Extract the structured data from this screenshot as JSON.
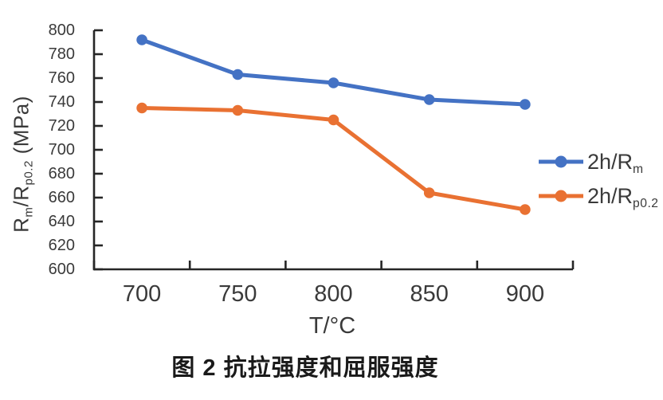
{
  "figure": {
    "caption": "图 2 抗拉强度和屈服强度"
  },
  "chart_data": {
    "type": "line",
    "categories": [
      "700",
      "750",
      "800",
      "850",
      "900"
    ],
    "series": [
      {
        "name": "2h/Rm",
        "label_parts": [
          {
            "t": "2h/R"
          },
          {
            "t": "m",
            "sub": true
          }
        ],
        "color": "#4472C4",
        "values": [
          792,
          763,
          756,
          742,
          738
        ]
      },
      {
        "name": "2h/Rp0.2",
        "label_parts": [
          {
            "t": "2h/R"
          },
          {
            "t": "p0.2",
            "sub": true
          }
        ],
        "color": "#E97132",
        "values": [
          735,
          733,
          725,
          664,
          650
        ]
      }
    ],
    "xlabel": "T/°C",
    "ylabel_parts": [
      {
        "t": "R"
      },
      {
        "t": "m",
        "sub": true
      },
      {
        "t": "/R"
      },
      {
        "t": "p0.2",
        "sub": true
      },
      {
        "t": " (MPa)"
      }
    ],
    "ylim": [
      600,
      800
    ],
    "ytick_step": 20,
    "y_tick_labels": [
      "600",
      "620",
      "640",
      "660",
      "680",
      "700",
      "720",
      "740",
      "760",
      "780",
      "800"
    ],
    "grid": false,
    "legend_position": "right-inside",
    "marker": "circle",
    "axis_color": "#262626",
    "label_color": "#3a3a3a"
  }
}
